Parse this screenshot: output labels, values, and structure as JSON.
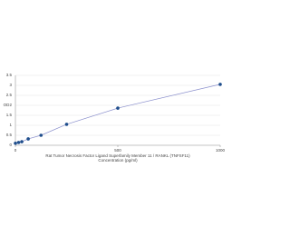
{
  "chart_data": {
    "type": "scatter",
    "x_label": "Rat Tumor Necrosis Factor Ligand Superfamily Member 11 / RANKL (TNFSF11)",
    "x_sublabel": "Concentration (pg/ml)",
    "y_label": "OD",
    "x": [
      0,
      15.6,
      31.25,
      62.5,
      125,
      250,
      500,
      1000
    ],
    "series": [
      {
        "color": "#1f4e8c",
        "line_color": "#8a8fcc",
        "values": [
          0.1,
          0.14,
          0.18,
          0.32,
          0.5,
          1.05,
          1.86,
          3.05
        ]
      }
    ],
    "xlim": [
      0,
      1000
    ],
    "xticks": [
      0,
      500,
      1000
    ],
    "ylim": [
      0,
      3.5
    ],
    "yticks": [
      0,
      0.5,
      1,
      1.5,
      2,
      2.5,
      3,
      3.5
    ],
    "grid": true
  }
}
